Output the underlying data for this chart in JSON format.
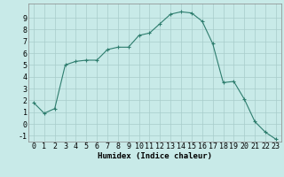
{
  "x": [
    0,
    1,
    2,
    3,
    4,
    5,
    6,
    7,
    8,
    9,
    10,
    11,
    12,
    13,
    14,
    15,
    16,
    17,
    18,
    19,
    20,
    21,
    22,
    23
  ],
  "y": [
    1.8,
    0.9,
    1.3,
    5.0,
    5.3,
    5.4,
    5.4,
    6.3,
    6.5,
    6.5,
    7.5,
    7.7,
    8.5,
    9.3,
    9.5,
    9.4,
    8.7,
    6.8,
    3.5,
    3.6,
    2.1,
    0.2,
    -0.7,
    -1.3
  ],
  "xlabel": "Humidex (Indice chaleur)",
  "ylim": [
    -1.5,
    10.2
  ],
  "xlim": [
    -0.5,
    23.5
  ],
  "yticks": [
    -1,
    0,
    1,
    2,
    3,
    4,
    5,
    6,
    7,
    8,
    9
  ],
  "xticks": [
    0,
    1,
    2,
    3,
    4,
    5,
    6,
    7,
    8,
    9,
    10,
    11,
    12,
    13,
    14,
    15,
    16,
    17,
    18,
    19,
    20,
    21,
    22,
    23
  ],
  "line_color": "#2e7d6e",
  "marker_color": "#2e7d6e",
  "bg_color": "#c8eae8",
  "grid_color": "#a8cccb",
  "xlabel_fontsize": 6.5,
  "tick_fontsize": 6.0
}
